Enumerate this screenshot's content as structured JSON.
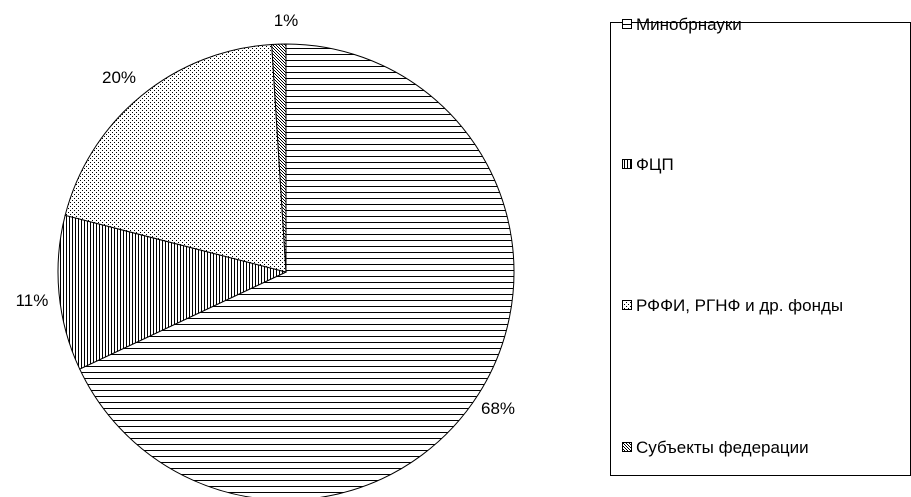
{
  "chart_data": {
    "type": "pie",
    "categories": [
      "Минобрнауки",
      "ФЦП",
      "РФФИ,  РГНФ и др. фонды",
      "Субъекты федерации"
    ],
    "values": [
      68,
      11,
      20,
      1
    ],
    "value_labels": [
      "68%",
      "11%",
      "20%",
      "1%"
    ],
    "patterns": [
      "horizontal-lines",
      "vertical-lines",
      "dots",
      "crosshatch"
    ],
    "legend_position": "right",
    "colors": {
      "stroke": "#000000",
      "background": "#ffffff"
    }
  }
}
